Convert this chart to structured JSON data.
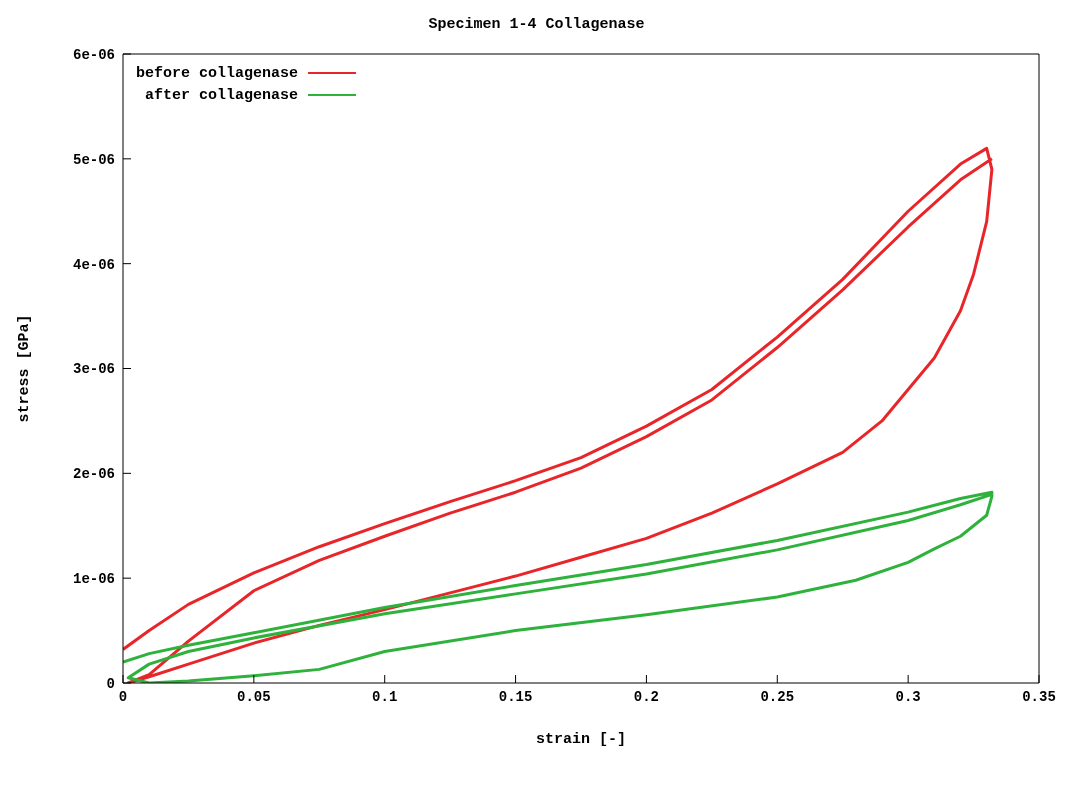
{
  "chart_data": {
    "type": "line",
    "title": "Specimen 1-4 Collagenase",
    "xlabel": "strain [-]",
    "ylabel": "stress [GPa]",
    "xlim": [
      0,
      0.35
    ],
    "xticks": [
      0,
      0.05,
      0.1,
      0.15,
      0.2,
      0.25,
      0.3,
      0.35
    ],
    "ylim": [
      0,
      6e-06
    ],
    "yticks": [
      0,
      {
        "value": 1e-06,
        "label": "1e-06"
      },
      {
        "value": 2e-06,
        "label": "2e-06"
      },
      {
        "value": 3e-06,
        "label": "3e-06"
      },
      {
        "value": 4e-06,
        "label": "4e-06"
      },
      {
        "value": 5e-06,
        "label": "5e-06"
      },
      {
        "value": 6e-06,
        "label": "6e-06"
      }
    ],
    "legend": "top left",
    "marker": "none",
    "line_style": "solid",
    "series": [
      {
        "name": "before collagenase",
        "color": "#e8262a",
        "x": [
          0,
          0.01,
          0.025,
          0.05,
          0.075,
          0.1,
          0.125,
          0.15,
          0.175,
          0.2,
          0.225,
          0.25,
          0.275,
          0.3,
          0.32,
          0.33,
          0.332,
          0.33,
          0.325,
          0.32,
          0.31,
          0.3,
          0.29,
          0.275,
          0.25,
          0.225,
          0.2,
          0.175,
          0.15,
          0.125,
          0.1,
          0.075,
          0.05,
          0.025,
          0.01,
          0.002,
          0.01,
          0.025,
          0.05,
          0.075,
          0.1,
          0.125,
          0.15,
          0.175,
          0.2,
          0.225,
          0.25,
          0.275,
          0.3,
          0.32,
          0.332
        ],
        "values": [
          3.2e-07,
          5e-07,
          7.5e-07,
          1.05e-06,
          1.3e-06,
          1.52e-06,
          1.73e-06,
          1.93e-06,
          2.15e-06,
          2.45e-06,
          2.8e-06,
          3.3e-06,
          3.85e-06,
          4.5e-06,
          4.95e-06,
          5.1e-06,
          4.9e-06,
          4.4e-06,
          3.9e-06,
          3.55e-06,
          3.1e-06,
          2.8e-06,
          2.5e-06,
          2.2e-06,
          1.9e-06,
          1.62e-06,
          1.38e-06,
          1.2e-06,
          1.02e-06,
          8.6e-07,
          7e-07,
          5.5e-07,
          3.8e-07,
          1.8e-07,
          6e-08,
          0,
          8e-08,
          4e-07,
          8.8e-07,
          1.17e-06,
          1.4e-06,
          1.62e-06,
          1.82e-06,
          2.05e-06,
          2.35e-06,
          2.7e-06,
          3.2e-06,
          3.75e-06,
          4.35e-06,
          4.8e-06,
          5e-06
        ]
      },
      {
        "name": "after collagenase",
        "color": "#2eb23c",
        "x": [
          0,
          0.01,
          0.025,
          0.05,
          0.1,
          0.15,
          0.2,
          0.25,
          0.3,
          0.32,
          0.332,
          0.332,
          0.33,
          0.32,
          0.31,
          0.3,
          0.28,
          0.25,
          0.2,
          0.15,
          0.1,
          0.075,
          0.05,
          0.025,
          0.01,
          0.002,
          0.01,
          0.025,
          0.05,
          0.1,
          0.15,
          0.2,
          0.25,
          0.3,
          0.32,
          0.332
        ],
        "values": [
          2e-07,
          2.8e-07,
          3.6e-07,
          4.8e-07,
          7.2e-07,
          9.3e-07,
          1.13e-06,
          1.36e-06,
          1.63e-06,
          1.76e-06,
          1.82e-06,
          1.78e-06,
          1.6e-06,
          1.4e-06,
          1.28e-06,
          1.15e-06,
          9.8e-07,
          8.2e-07,
          6.5e-07,
          5e-07,
          3e-07,
          1.3e-07,
          7e-08,
          2e-08,
          0,
          5e-08,
          1.8e-07,
          3e-07,
          4.3e-07,
          6.6e-07,
          8.5e-07,
          1.04e-06,
          1.27e-06,
          1.55e-06,
          1.7e-06,
          1.8e-06
        ]
      }
    ]
  }
}
